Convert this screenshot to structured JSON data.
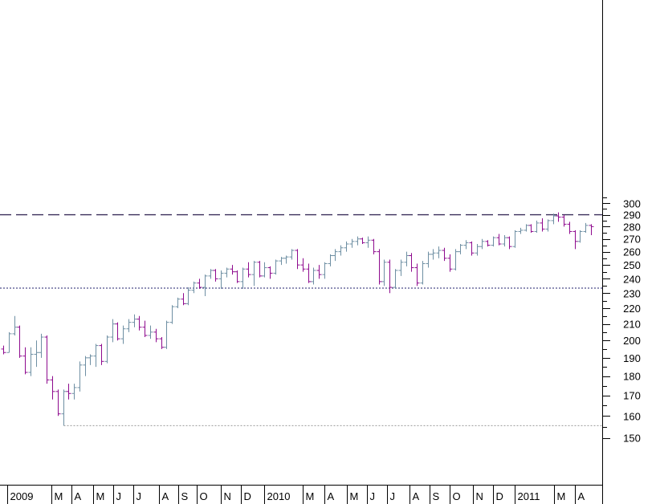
{
  "chart_data": {
    "type": "ohlc",
    "title": "",
    "xlabel": "",
    "ylabel": "",
    "ylim": [
      145,
      305
    ],
    "y_scale": "log",
    "y_ticks": [
      150,
      160,
      170,
      180,
      190,
      200,
      210,
      220,
      230,
      240,
      250,
      260,
      270,
      280,
      290,
      300
    ],
    "x_ticks": [
      "2009",
      "M",
      "A",
      "M",
      "J",
      "J",
      "A",
      "S",
      "O",
      "N",
      "D",
      "2010",
      "M",
      "A",
      "M",
      "J",
      "J",
      "A",
      "S",
      "O",
      "N",
      "D",
      "2011",
      "M",
      "A"
    ],
    "reference_lines": {
      "resistance_dashed": 290,
      "support_dotted": 233.5,
      "low_dotted": 155.5
    },
    "colors": {
      "up_bar": "#6e8fa3",
      "down_bar": "#8e0a8e",
      "dashed_line": "#3a2f5a",
      "support_line": "#22206e",
      "low_line": "#9a9a9a",
      "axis": "#000000"
    },
    "weeks": [
      [
        195,
        197,
        192,
        193
      ],
      [
        193,
        205,
        193,
        204
      ],
      [
        204,
        215,
        203,
        208
      ],
      [
        208,
        209,
        190,
        191
      ],
      [
        191,
        196,
        181,
        182
      ],
      [
        182,
        196,
        180,
        192
      ],
      [
        192,
        200,
        185,
        193
      ],
      [
        193,
        204,
        190,
        202
      ],
      [
        202,
        203,
        176,
        178
      ],
      [
        178,
        180,
        168,
        172
      ],
      [
        172,
        173,
        160,
        161
      ],
      [
        161,
        173,
        155.5,
        172
      ],
      [
        172,
        176,
        168,
        171
      ],
      [
        171,
        176,
        168,
        174
      ],
      [
        174,
        188,
        172,
        186
      ],
      [
        186,
        191,
        180,
        190
      ],
      [
        190,
        192,
        186,
        191
      ],
      [
        191,
        198,
        185,
        197
      ],
      [
        197,
        198,
        186,
        188
      ],
      [
        188,
        203,
        187,
        202
      ],
      [
        202,
        213,
        199,
        210
      ],
      [
        210,
        211,
        200,
        201
      ],
      [
        201,
        209,
        198,
        207
      ],
      [
        207,
        213,
        205,
        211
      ],
      [
        211,
        216,
        208,
        213
      ],
      [
        213,
        215,
        206,
        208
      ],
      [
        208,
        212,
        202,
        203
      ],
      [
        203,
        209,
        201,
        205
      ],
      [
        205,
        207,
        199,
        201
      ],
      [
        201,
        202,
        195,
        196
      ],
      [
        196,
        212,
        195,
        211
      ],
      [
        211,
        222,
        210,
        221
      ],
      [
        221,
        227,
        220,
        226
      ],
      [
        226,
        230,
        222,
        223
      ],
      [
        223,
        234,
        222,
        232
      ],
      [
        232,
        238,
        230,
        237
      ],
      [
        237,
        240,
        233,
        234
      ],
      [
        234,
        243,
        228,
        242
      ],
      [
        242,
        247,
        240,
        246
      ],
      [
        246,
        247,
        238,
        240
      ],
      [
        240,
        246,
        233,
        244
      ],
      [
        244,
        248,
        241,
        247
      ],
      [
        247,
        250,
        243,
        245
      ],
      [
        245,
        246,
        237,
        238
      ],
      [
        238,
        248,
        233,
        247
      ],
      [
        247,
        252,
        241,
        243
      ],
      [
        243,
        253,
        235,
        252
      ],
      [
        252,
        253,
        241,
        242
      ],
      [
        242,
        252,
        241,
        248
      ],
      [
        248,
        249,
        240,
        244
      ],
      [
        244,
        254,
        243,
        253
      ],
      [
        253,
        256,
        250,
        255
      ],
      [
        255,
        257,
        251,
        256
      ],
      [
        256,
        262,
        254,
        261
      ],
      [
        261,
        262,
        247,
        250
      ],
      [
        250,
        255,
        245,
        247
      ],
      [
        247,
        251,
        237,
        238
      ],
      [
        238,
        248,
        236,
        246
      ],
      [
        246,
        250,
        240,
        243
      ],
      [
        243,
        252,
        240,
        251
      ],
      [
        251,
        258,
        249,
        257
      ],
      [
        257,
        262,
        253,
        260
      ],
      [
        260,
        265,
        257,
        263
      ],
      [
        263,
        268,
        260,
        266
      ],
      [
        266,
        270,
        263,
        268
      ],
      [
        268,
        272,
        265,
        270
      ],
      [
        270,
        271,
        266,
        267
      ],
      [
        267,
        272,
        263,
        269
      ],
      [
        269,
        270,
        258,
        260
      ],
      [
        260,
        262,
        236,
        238
      ],
      [
        238,
        254,
        235,
        252
      ],
      [
        252,
        254,
        230,
        234
      ],
      [
        234,
        247,
        233,
        246
      ],
      [
        246,
        254,
        242,
        252
      ],
      [
        252,
        260,
        249,
        257
      ],
      [
        257,
        259,
        245,
        248
      ],
      [
        248,
        251,
        235,
        237
      ],
      [
        237,
        253,
        236,
        251
      ],
      [
        251,
        260,
        248,
        258
      ],
      [
        258,
        262,
        254,
        259
      ],
      [
        259,
        264,
        255,
        261
      ],
      [
        261,
        263,
        253,
        255
      ],
      [
        255,
        258,
        245,
        247
      ],
      [
        247,
        262,
        246,
        260
      ],
      [
        260,
        266,
        258,
        265
      ],
      [
        265,
        269,
        262,
        267
      ],
      [
        267,
        268,
        257,
        259
      ],
      [
        259,
        266,
        257,
        264
      ],
      [
        264,
        270,
        262,
        268
      ],
      [
        268,
        269,
        264,
        265
      ],
      [
        265,
        272,
        264,
        271
      ],
      [
        271,
        274,
        265,
        266
      ],
      [
        266,
        273,
        264,
        271
      ],
      [
        271,
        272,
        262,
        264
      ],
      [
        264,
        277,
        263,
        276
      ],
      [
        276,
        279,
        274,
        277
      ],
      [
        277,
        282,
        276,
        281
      ],
      [
        281,
        282,
        275,
        276
      ],
      [
        276,
        285,
        275,
        283
      ],
      [
        283,
        287,
        276,
        278
      ],
      [
        278,
        286,
        276,
        285
      ],
      [
        285,
        291,
        282,
        289
      ],
      [
        289,
        292,
        284,
        288
      ],
      [
        288,
        290,
        280,
        282
      ],
      [
        282,
        284,
        274,
        276
      ],
      [
        276,
        277,
        262,
        268
      ],
      [
        268,
        277,
        267,
        276
      ],
      [
        276,
        283,
        275,
        281
      ],
      [
        281,
        282,
        273,
        280
      ]
    ]
  }
}
